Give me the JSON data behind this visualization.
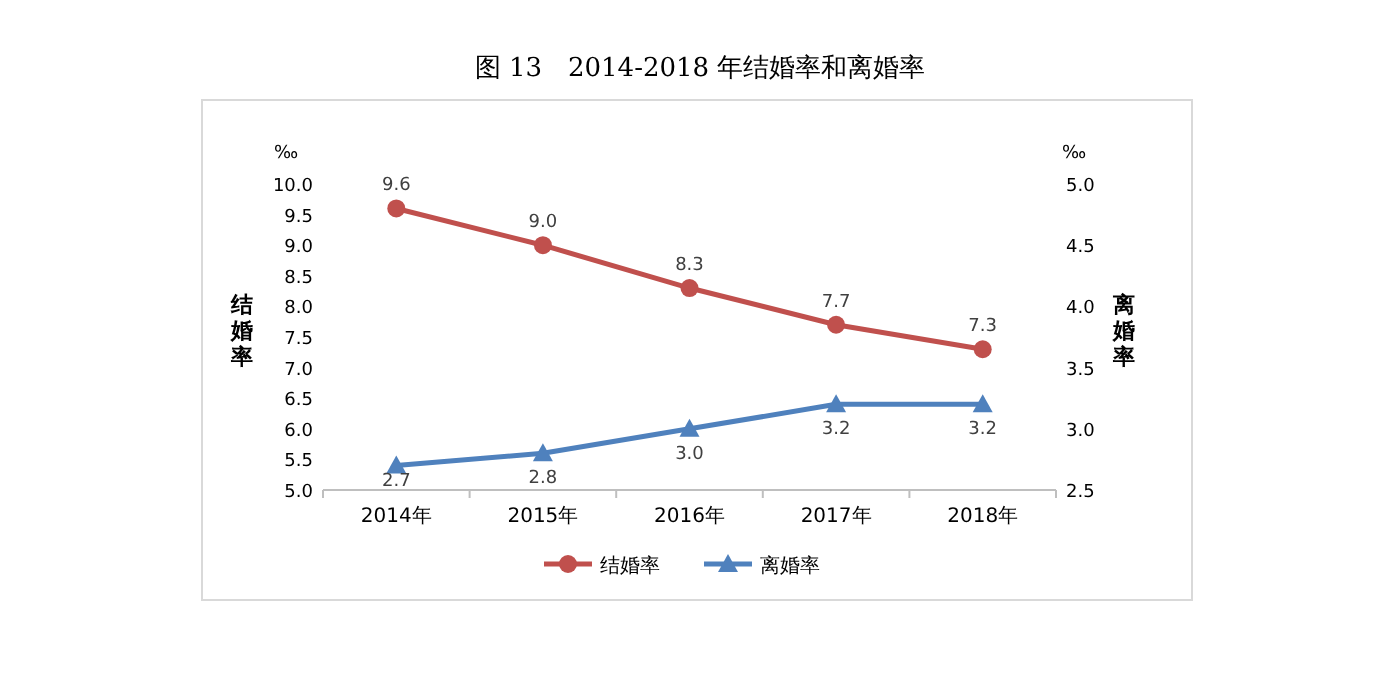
{
  "chart_data": {
    "type": "line",
    "title": "图 13　2014-2018 年结婚率和离婚率",
    "ylabel": "结婚率",
    "y2label": "离婚率",
    "categories": [
      "2014年",
      "2015年",
      "2016年",
      "2017年",
      "2018年"
    ],
    "series": [
      {
        "name": "结婚率",
        "color": "#c0504d",
        "marker": "circle",
        "values": [
          9.6,
          9.0,
          8.3,
          7.7,
          7.3
        ],
        "value_labels": [
          "9.6",
          "9.0",
          "8.3",
          "7.7",
          "7.3"
        ]
      },
      {
        "name": "离婚率",
        "color": "#4f81bd",
        "marker": "triangle",
        "axis": "y2",
        "values": [
          2.7,
          2.8,
          3.0,
          3.2,
          3.2
        ],
        "value_labels": [
          "2.7",
          "2.8",
          "3.0",
          "3.2",
          "3.2"
        ]
      }
    ],
    "ylim": [
      5,
      10
    ],
    "yticks": [
      {
        "value": 5,
        "label": "5.0"
      },
      {
        "value": 5.5,
        "label": "5.5"
      },
      {
        "value": 6,
        "label": "6.0"
      },
      {
        "value": 6.5,
        "label": "6.5"
      },
      {
        "value": 7,
        "label": "7.0"
      },
      {
        "value": 7.5,
        "label": "7.5"
      },
      {
        "value": 8,
        "label": "8.0"
      },
      {
        "value": 8.5,
        "label": "8.5"
      },
      {
        "value": 9,
        "label": "9.0"
      },
      {
        "value": 9.5,
        "label": "9.5"
      },
      {
        "value": 10,
        "label": "10.0"
      }
    ],
    "y2lim": [
      2.5,
      5
    ],
    "y2ticks": [
      {
        "value": 2.5,
        "label": "2.5"
      },
      {
        "value": 3,
        "label": "3.0"
      },
      {
        "value": 3.5,
        "label": "3.5"
      },
      {
        "value": 4,
        "label": "4.0"
      },
      {
        "value": 4.5,
        "label": "4.5"
      },
      {
        "value": 5,
        "label": "5.0"
      }
    ],
    "annotations": [
      "‰",
      "‰"
    ],
    "legend": "bottom",
    "line_style": "solid"
  }
}
